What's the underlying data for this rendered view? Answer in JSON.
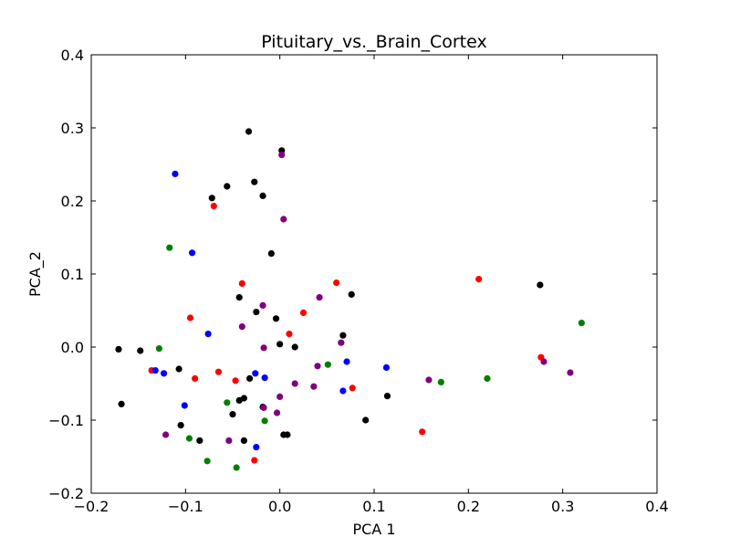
{
  "chart_data": {
    "type": "scatter",
    "title": "Pituitary_vs._Brain_Cortex",
    "xlabel": "PCA 1",
    "ylabel": "PCA_2",
    "xlim": [
      -0.2,
      0.4
    ],
    "ylim": [
      -0.2,
      0.4
    ],
    "x_ticks": [
      -0.2,
      -0.1,
      0.0,
      0.1,
      0.2,
      0.3,
      0.4
    ],
    "y_ticks": [
      -0.2,
      -0.1,
      0.0,
      0.1,
      0.2,
      0.3,
      0.4
    ],
    "x_tick_labels": [
      "−0.2",
      "−0.1",
      "0.0",
      "0.1",
      "0.2",
      "0.3",
      "0.4"
    ],
    "y_tick_labels": [
      "−0.2",
      "−0.1",
      "0.0",
      "0.1",
      "0.2",
      "0.3",
      "0.4"
    ],
    "grid": false,
    "series": [
      {
        "color": "#000000",
        "points": [
          [
            -0.033,
            0.295
          ],
          [
            0.002,
            0.269
          ],
          [
            -0.072,
            0.204
          ],
          [
            -0.056,
            0.22
          ],
          [
            -0.027,
            0.226
          ],
          [
            -0.018,
            0.207
          ],
          [
            -0.009,
            0.128
          ],
          [
            -0.043,
            0.068
          ],
          [
            0.076,
            0.072
          ],
          [
            0.276,
            0.085
          ],
          [
            -0.025,
            0.048
          ],
          [
            -0.004,
            0.039
          ],
          [
            0.067,
            0.016
          ],
          [
            -0.171,
            -0.003
          ],
          [
            -0.148,
            -0.005
          ],
          [
            0.0,
            0.004
          ],
          [
            0.016,
            0.0
          ],
          [
            -0.107,
            -0.03
          ],
          [
            -0.032,
            -0.043
          ],
          [
            -0.168,
            -0.078
          ],
          [
            -0.043,
            -0.073
          ],
          [
            -0.038,
            -0.07
          ],
          [
            -0.05,
            -0.092
          ],
          [
            -0.018,
            -0.082
          ],
          [
            0.114,
            -0.067
          ],
          [
            -0.105,
            -0.107
          ],
          [
            -0.085,
            -0.128
          ],
          [
            -0.038,
            -0.128
          ],
          [
            0.004,
            -0.12
          ],
          [
            0.008,
            -0.12
          ],
          [
            0.091,
            -0.1
          ]
        ]
      },
      {
        "color": "#ff0000",
        "points": [
          [
            -0.07,
            0.193
          ],
          [
            -0.04,
            0.087
          ],
          [
            0.06,
            0.088
          ],
          [
            0.211,
            0.093
          ],
          [
            -0.095,
            0.04
          ],
          [
            0.025,
            0.047
          ],
          [
            0.01,
            0.018
          ],
          [
            0.277,
            -0.014
          ],
          [
            -0.136,
            -0.032
          ],
          [
            -0.065,
            -0.034
          ],
          [
            -0.047,
            -0.046
          ],
          [
            -0.09,
            -0.043
          ],
          [
            0.077,
            -0.056
          ],
          [
            0.151,
            -0.116
          ],
          [
            -0.027,
            -0.155
          ]
        ]
      },
      {
        "color": "#0000ff",
        "points": [
          [
            -0.111,
            0.237
          ],
          [
            -0.093,
            0.129
          ],
          [
            -0.076,
            0.018
          ],
          [
            0.071,
            -0.02
          ],
          [
            0.113,
            -0.028
          ],
          [
            -0.132,
            -0.032
          ],
          [
            -0.123,
            -0.036
          ],
          [
            -0.026,
            -0.036
          ],
          [
            -0.016,
            -0.042
          ],
          [
            0.067,
            -0.06
          ],
          [
            -0.101,
            -0.08
          ],
          [
            -0.025,
            -0.137
          ]
        ]
      },
      {
        "color": "#800080",
        "points": [
          [
            0.002,
            0.263
          ],
          [
            0.004,
            0.175
          ],
          [
            0.042,
            0.068
          ],
          [
            -0.018,
            0.057
          ],
          [
            -0.04,
            0.028
          ],
          [
            0.065,
            0.006
          ],
          [
            -0.017,
            -0.001
          ],
          [
            0.04,
            -0.026
          ],
          [
            0.158,
            -0.045
          ],
          [
            0.28,
            -0.02
          ],
          [
            0.308,
            -0.035
          ],
          [
            0.016,
            -0.05
          ],
          [
            0.036,
            -0.054
          ],
          [
            0.0,
            -0.068
          ],
          [
            -0.003,
            -0.09
          ],
          [
            -0.121,
            -0.12
          ],
          [
            -0.054,
            -0.128
          ],
          [
            -0.017,
            -0.083
          ]
        ]
      },
      {
        "color": "#008000",
        "points": [
          [
            -0.117,
            0.136
          ],
          [
            -0.128,
            -0.002
          ],
          [
            0.32,
            0.033
          ],
          [
            0.051,
            -0.024
          ],
          [
            0.171,
            -0.048
          ],
          [
            0.22,
            -0.043
          ],
          [
            -0.056,
            -0.076
          ],
          [
            -0.016,
            -0.101
          ],
          [
            -0.096,
            -0.125
          ],
          [
            -0.077,
            -0.156
          ],
          [
            -0.046,
            -0.165
          ]
        ]
      }
    ]
  }
}
